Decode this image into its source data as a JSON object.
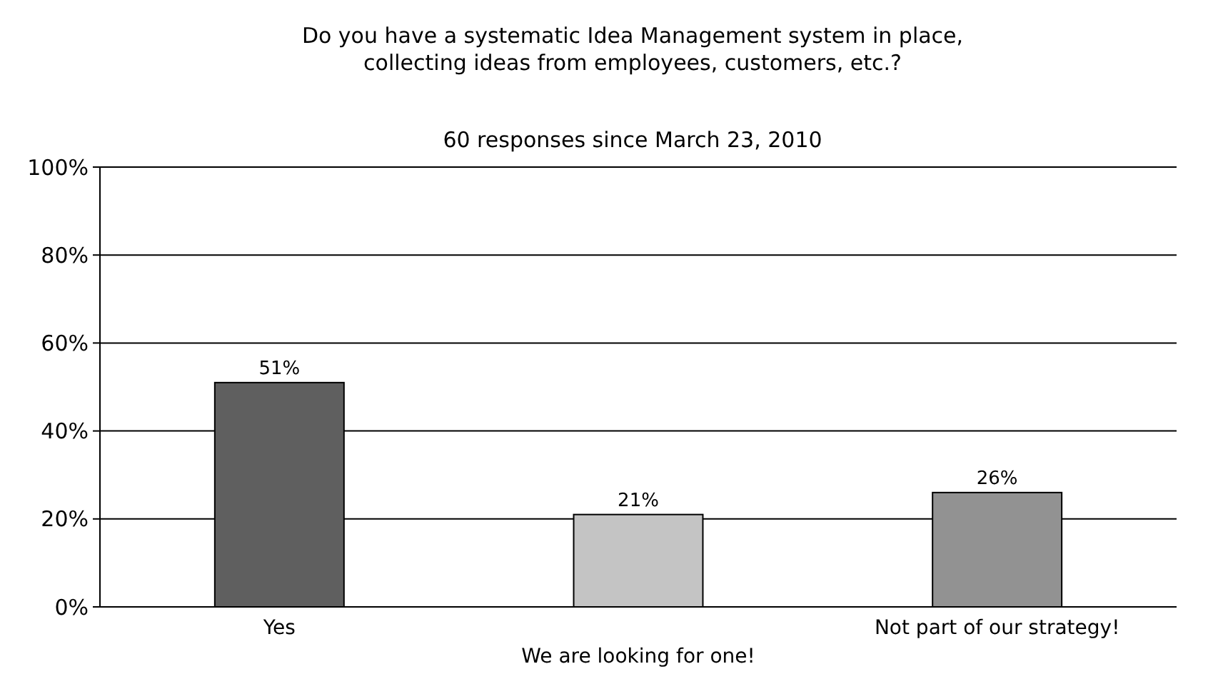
{
  "chart_data": {
    "type": "bar",
    "title": "Do you have a systematic Idea Management system in place,\ncollecting ideas from employees, customers, etc.?",
    "subtitle": "60 responses since March 23, 2010",
    "categories": [
      "Yes",
      "We are looking for one!",
      "Not part of our strategy!"
    ],
    "values": [
      51,
      21,
      26
    ],
    "colors": [
      "#5f5f5f",
      "#c4c4c4",
      "#929292"
    ],
    "value_labels": [
      "51%",
      "21%",
      "26%"
    ],
    "ylim": [
      0,
      100
    ],
    "yticks": [
      {
        "value": 0,
        "label": "0%"
      },
      {
        "value": 20,
        "label": "20%"
      },
      {
        "value": 40,
        "label": "40%"
      },
      {
        "value": 60,
        "label": "60%"
      },
      {
        "value": 80,
        "label": "80%"
      },
      {
        "value": 100,
        "label": "100%"
      }
    ],
    "grid": "y"
  }
}
